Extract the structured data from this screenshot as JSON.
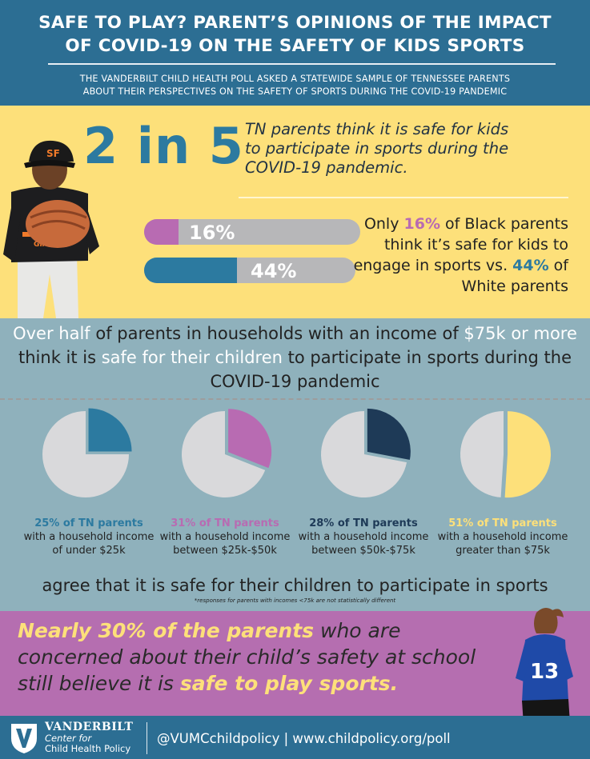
{
  "header": {
    "title_line1": "SAFE TO PLAY? PARENT’S OPINIONS OF THE IMPACT",
    "title_line2": "OF COVID-19 ON THE SAFETY OF KIDS SPORTS",
    "subtitle_line1": "THE VANDERBILT CHILD HEALTH POLL ASKED A STATEWIDE SAMPLE OF TENNESSEE PARENTS",
    "subtitle_line2": "ABOUT THEIR PERSPECTIVES ON THE SAFETY OF SPORTS DURING THE COVID-19 PANDEMIC"
  },
  "stat": {
    "big": "2 in 5",
    "text": "TN parents think it is safe for kids to participate in sports during the COVID-19 pandemic."
  },
  "comparison": {
    "bars": [
      {
        "label": "16%",
        "value": 16,
        "color": "#b86bb2"
      },
      {
        "label": "44%",
        "value": 44,
        "color": "#2c7aa0"
      }
    ],
    "text_1": "Only ",
    "pct_black": "16%",
    "text_2": " of Black parents think it’s safe for kids to engage in sports vs. ",
    "pct_white": "44%",
    "text_3": " of White parents"
  },
  "income": {
    "head_1": "Over half",
    "head_2": " of parents in households with an income of ",
    "head_3": "$75k or more",
    "head_4": " think it is ",
    "head_5": "safe for their children",
    "head_6": " to participate in sports during the COVID-19 pandemic",
    "pies": [
      {
        "value": 25,
        "color": "#2c7aa0",
        "pct_text": "25% of TN parents",
        "desc": "with a household income of under $25k"
      },
      {
        "value": 31,
        "color": "#b86bb2",
        "pct_text": "31% of TN parents",
        "desc": "with a household income between $25k-$50k"
      },
      {
        "value": 28,
        "color": "#1e3a57",
        "pct_text": "28% of TN parents",
        "desc": "with a household income between $50k-$75k"
      },
      {
        "value": 51,
        "color": "#fde07a",
        "pct_text": "51% of TN parents",
        "desc": "with a household income greater than $75k"
      }
    ],
    "agree": "agree that it is safe for their children to participate in sports",
    "footnote": "*responses for parents with incomes <75k are not statistically different"
  },
  "school": {
    "hl_1": "Nearly 30% of the parents",
    "text_1": " who are concerned about their child’s safety at school still believe it is ",
    "hl_2": "safe to play sports."
  },
  "footer": {
    "org_name": "VANDERBILT",
    "org_sub1": "Center for",
    "org_sub2": "Child Health Policy",
    "links": "@VUMCchildpolicy | www.childpolicy.org/poll"
  },
  "kids": {
    "cap_text": "SF",
    "jersey_text": "GIANTS",
    "girl_number": "13"
  },
  "colors": {
    "navy_header": "#2c6e93",
    "yellow": "#fde07a",
    "pink": "#b86bb2",
    "teal": "#2c7aa0",
    "slate": "#8fb1bc",
    "purple": "#b56eb0",
    "grey_bar": "#b7b7b9"
  }
}
